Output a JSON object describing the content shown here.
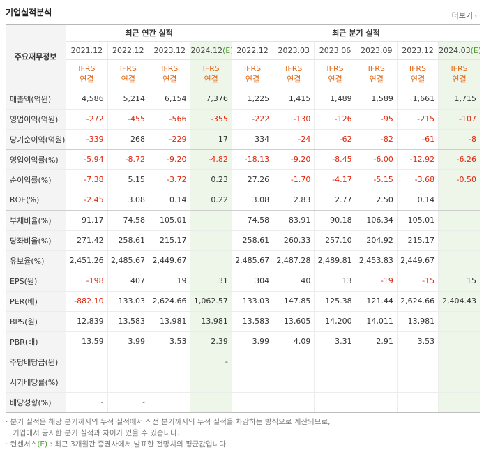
{
  "header": {
    "title": "기업실적분석",
    "more_label": "더보기"
  },
  "table": {
    "row_header_label": "주요재무정보",
    "group_annual": "최근 연간 실적",
    "group_quarterly": "최근 분기 실적",
    "periods": [
      {
        "label": "2021.12",
        "est": ""
      },
      {
        "label": "2022.12",
        "est": ""
      },
      {
        "label": "2023.12",
        "est": ""
      },
      {
        "label": "2024.12",
        "est": "(E)"
      },
      {
        "label": "2022.12",
        "est": ""
      },
      {
        "label": "2023.03",
        "est": ""
      },
      {
        "label": "2023.06",
        "est": ""
      },
      {
        "label": "2023.09",
        "est": ""
      },
      {
        "label": "2023.12",
        "est": ""
      },
      {
        "label": "2024.03",
        "est": "(E)"
      }
    ],
    "basis_line1": "IFRS",
    "basis_line2": "연결",
    "rows": [
      {
        "label": "매출액(억원)",
        "values": [
          "4,586",
          "5,214",
          "6,154",
          "7,376",
          "1,225",
          "1,415",
          "1,489",
          "1,589",
          "1,661",
          "1,715"
        ]
      },
      {
        "label": "영업이익(억원)",
        "values": [
          "-272",
          "-455",
          "-566",
          "-355",
          "-222",
          "-130",
          "-126",
          "-95",
          "-215",
          "-107"
        ]
      },
      {
        "label": "당기순이익(억원)",
        "values": [
          "-339",
          "268",
          "-229",
          "17",
          "334",
          "-24",
          "-62",
          "-82",
          "-61",
          "-8"
        ]
      },
      {
        "label": "영업이익률(%)",
        "values": [
          "-5.94",
          "-8.72",
          "-9.20",
          "-4.82",
          "-18.13",
          "-9.20",
          "-8.45",
          "-6.00",
          "-12.92",
          "-6.26"
        ]
      },
      {
        "label": "순이익률(%)",
        "values": [
          "-7.38",
          "5.15",
          "-3.72",
          "0.23",
          "27.26",
          "-1.70",
          "-4.17",
          "-5.15",
          "-3.68",
          "-0.50"
        ]
      },
      {
        "label": "ROE(%)",
        "values": [
          "-2.45",
          "3.08",
          "0.14",
          "0.22",
          "3.08",
          "2.83",
          "2.77",
          "2.50",
          "0.14",
          ""
        ]
      },
      {
        "label": "부채비율(%)",
        "values": [
          "91.17",
          "74.58",
          "105.01",
          "",
          "74.58",
          "83.91",
          "90.18",
          "106.34",
          "105.01",
          ""
        ]
      },
      {
        "label": "당좌비율(%)",
        "values": [
          "271.42",
          "258.61",
          "215.17",
          "",
          "258.61",
          "260.33",
          "257.10",
          "204.92",
          "215.17",
          ""
        ]
      },
      {
        "label": "유보율(%)",
        "values": [
          "2,451.26",
          "2,485.67",
          "2,449.67",
          "",
          "2,485.67",
          "2,487.28",
          "2,489.81",
          "2,453.83",
          "2,449.67",
          ""
        ]
      },
      {
        "label": "EPS(원)",
        "values": [
          "-198",
          "407",
          "19",
          "31",
          "304",
          "40",
          "13",
          "-19",
          "-15",
          "15"
        ]
      },
      {
        "label": "PER(배)",
        "values": [
          "-882.10",
          "133.03",
          "2,624.66",
          "1,062.57",
          "133.03",
          "147.85",
          "125.38",
          "121.44",
          "2,624.66",
          "2,404.43"
        ]
      },
      {
        "label": "BPS(원)",
        "values": [
          "12,839",
          "13,583",
          "13,981",
          "13,981",
          "13,583",
          "13,605",
          "14,200",
          "14,011",
          "13,981",
          ""
        ]
      },
      {
        "label": "PBR(배)",
        "values": [
          "13.59",
          "3.99",
          "3.53",
          "2.39",
          "3.99",
          "4.09",
          "3.31",
          "2.91",
          "3.53",
          ""
        ]
      },
      {
        "label": "주당배당금(원)",
        "values": [
          "",
          "",
          "",
          "-",
          "",
          "",
          "",
          "",
          "",
          ""
        ]
      },
      {
        "label": "시가배당률(%)",
        "values": [
          "",
          "",
          "",
          "",
          "",
          "",
          "",
          "",
          "",
          ""
        ]
      },
      {
        "label": "배당성향(%)",
        "values": [
          "-",
          "-",
          "",
          "",
          "",
          "",
          "",
          "",
          "",
          ""
        ]
      }
    ]
  },
  "notes": {
    "line1": "· 분기 실적은 해당 분기까지의 누적 실적에서 직전 분기까지의 누적 실적을 차감하는 방식으로 계산되므로,",
    "line2": "기업에서 공시한 분기 실적과 차이가 있을 수 있습니다.",
    "line3_prefix": "· 컨센서스",
    "line3_mark": "(E)",
    "line3_suffix": " : 최근 3개월간 증권사에서 발표한 전망치의 평균값입니다."
  },
  "colors": {
    "negative": "#e0280e",
    "ifrs": "#e06a1b",
    "estimate_bg": "#eef6ea",
    "estimate_mark": "#4e9a2e"
  }
}
